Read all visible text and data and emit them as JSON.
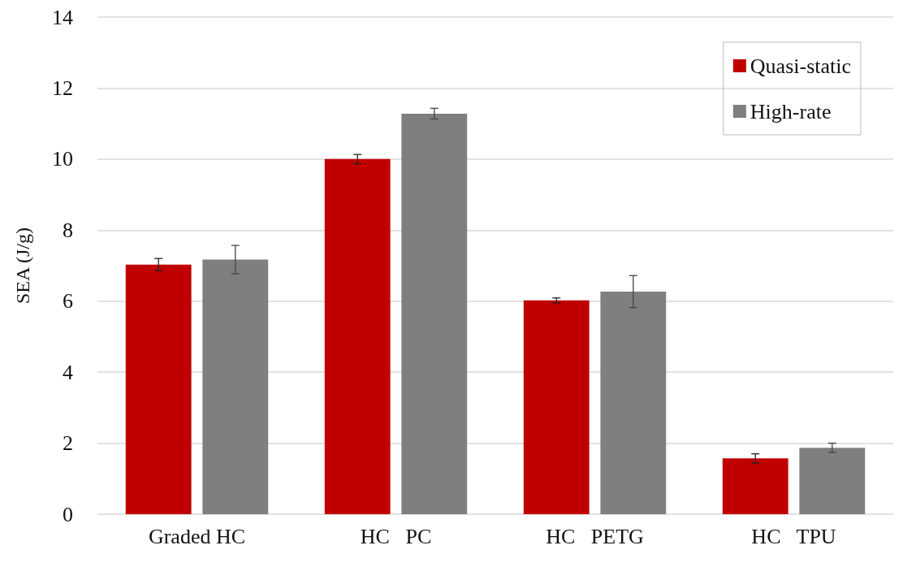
{
  "chart_data": {
    "type": "bar",
    "ylabel": "SEA (J/g)",
    "categories": [
      "Graded HC",
      "HC   PC",
      "HC   PETG",
      "HC   TPU"
    ],
    "series": [
      {
        "name": "Quasi-static",
        "color": "#c00000",
        "values": [
          7.03,
          10.0,
          6.02,
          1.57
        ],
        "errors": [
          0.17,
          0.13,
          0.07,
          0.13
        ]
      },
      {
        "name": "High-rate",
        "color": "#7f7f7f",
        "values": [
          7.17,
          11.28,
          6.27,
          1.87
        ],
        "errors": [
          0.4,
          0.15,
          0.45,
          0.13
        ]
      }
    ],
    "ylim": [
      0,
      14
    ],
    "yticks": [
      0,
      2,
      4,
      6,
      8,
      10,
      12,
      14
    ],
    "grid": "y",
    "legend": "top right"
  }
}
